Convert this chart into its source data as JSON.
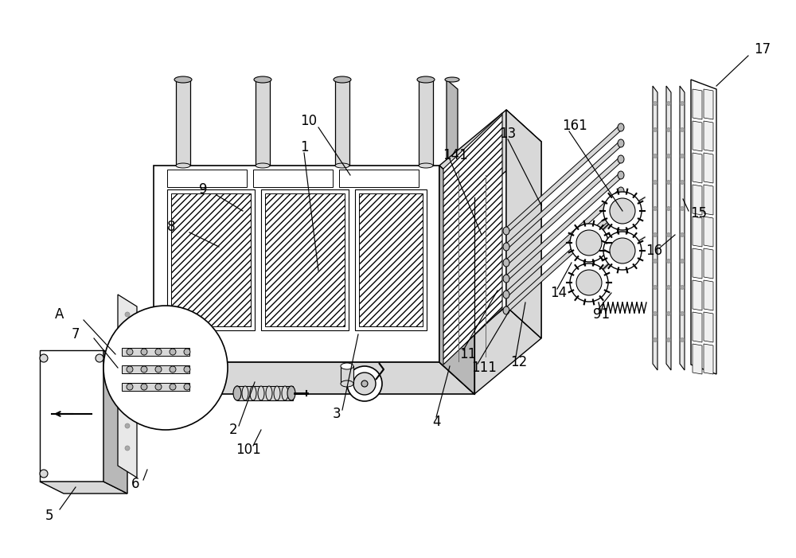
{
  "bg_color": "#ffffff",
  "lc": "#000000",
  "gray1": "#d8d8d8",
  "gray2": "#b8b8b8",
  "gray3": "#e8e8e8",
  "figsize": [
    10.0,
    7.01
  ],
  "dpi": 100
}
